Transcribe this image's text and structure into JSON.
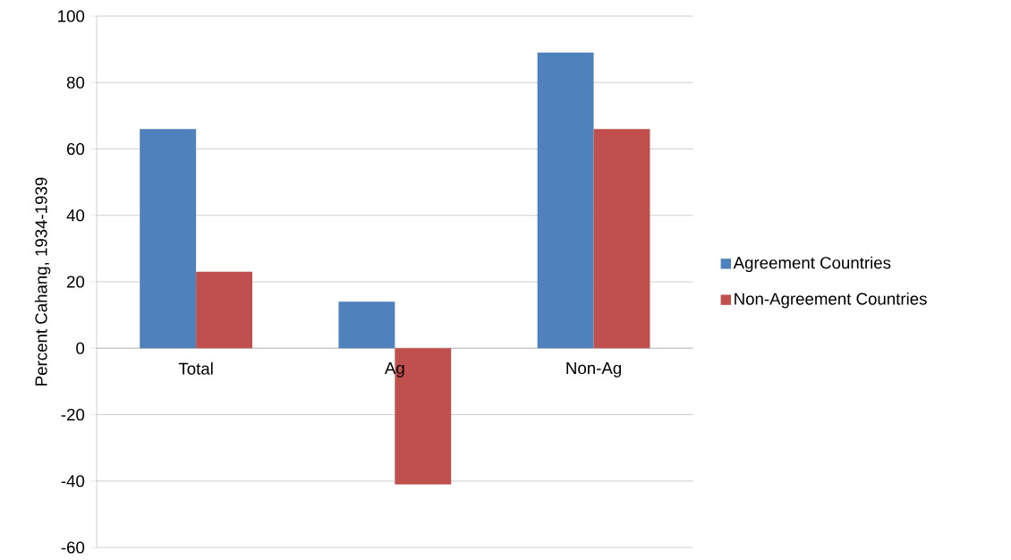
{
  "chart_data": {
    "type": "bar",
    "ylabel": "Percent Cahang, 1934-1939",
    "categories": [
      "Total",
      "Ag",
      "Non-Ag"
    ],
    "series": [
      {
        "name": "Agreement Countries",
        "color": "#4f81bd",
        "values": [
          66,
          14,
          89
        ]
      },
      {
        "name": "Non-Agreement Countries",
        "color": "#c0504d",
        "values": [
          23,
          -41,
          66
        ]
      }
    ],
    "ylim": [
      -60,
      100
    ],
    "yticks": [
      -60,
      -40,
      -20,
      0,
      20,
      40,
      60,
      80,
      100
    ],
    "grid": "y",
    "legend": "right"
  }
}
